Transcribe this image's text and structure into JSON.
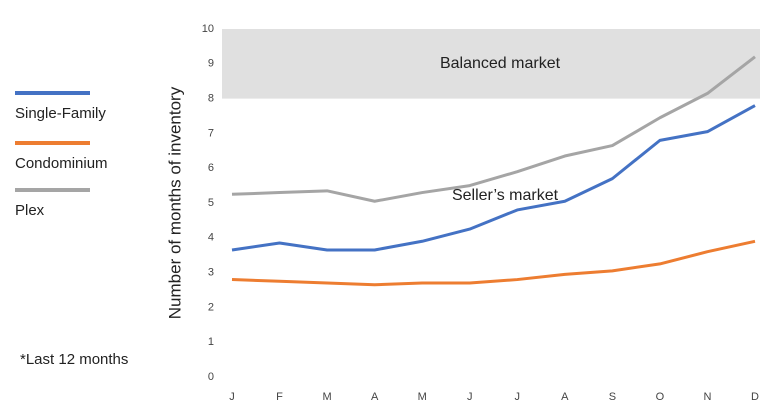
{
  "chart_data": {
    "type": "line",
    "y_label": "Number of months of inventory",
    "categories": [
      "J",
      "F",
      "M",
      "A",
      "M",
      "J",
      "J",
      "A",
      "S",
      "O",
      "N",
      "D"
    ],
    "series": [
      {
        "name": "Single-Family",
        "color": "#4472c4",
        "values": [
          3.65,
          3.85,
          3.65,
          3.65,
          3.9,
          4.25,
          4.8,
          5.05,
          5.7,
          6.8,
          7.05,
          7.8
        ]
      },
      {
        "name": "Condominium",
        "color": "#ed7d31",
        "values": [
          2.8,
          2.75,
          2.7,
          2.65,
          2.7,
          2.7,
          2.8,
          2.95,
          3.05,
          3.25,
          3.6,
          3.9
        ]
      },
      {
        "name": "Plex",
        "color": "#a5a5a5",
        "values": [
          5.25,
          5.3,
          5.35,
          5.05,
          5.3,
          5.5,
          5.9,
          6.35,
          6.65,
          7.45,
          8.15,
          9.2
        ]
      }
    ],
    "band": {
      "label": "Balanced market",
      "range": [
        8,
        10
      ],
      "color": "#e0e0e0"
    },
    "annotation": "Seller’s market",
    "footnote": "*Last 12 months",
    "ylim": [
      0,
      10
    ],
    "yticks": [
      0,
      1,
      2,
      3,
      4,
      5,
      6,
      7,
      8,
      9,
      10
    ],
    "grid": false,
    "legend": "left"
  }
}
